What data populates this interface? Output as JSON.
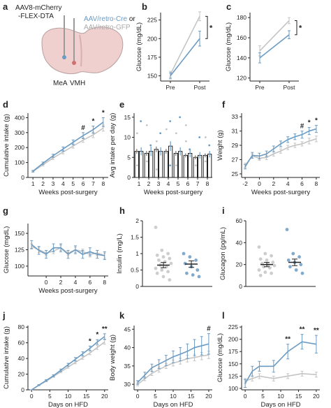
{
  "colors": {
    "cre": "#6b9bc3",
    "gfp": "#c4c4c4",
    "axis": "#222222",
    "text": "#222222"
  },
  "panel_a": {
    "letter": "a",
    "virus_line1": "AAV8-mCherry",
    "virus_line2": "-FLEX-DTA",
    "retro_cre": "AAV/retro-Cre",
    "retro_or": " or",
    "retro_gfp": "AAV/retro-GFP",
    "region_left": "MeA",
    "region_right": "VMH"
  },
  "chart_data": [
    {
      "id": "b",
      "letter": "b",
      "type": "line",
      "ylabel": "Glucose (mg/dL)",
      "xlabel": "",
      "categories": [
        "Pre",
        "Post"
      ],
      "yticks": [
        150,
        175,
        200,
        225
      ],
      "ylim": [
        143,
        235
      ],
      "series": [
        {
          "color": "gfp",
          "values": [
            152,
            230
          ],
          "err": [
            4,
            6
          ]
        },
        {
          "color": "cre",
          "values": [
            150,
            200
          ],
          "err": [
            4,
            10
          ]
        }
      ],
      "annotations": [
        "*"
      ]
    },
    {
      "id": "c",
      "letter": "c",
      "type": "line",
      "ylabel": "Glucose (mg/dL)",
      "xlabel": "",
      "categories": [
        "Pre",
        "Post"
      ],
      "yticks": [
        120,
        140,
        160,
        180
      ],
      "ylim": [
        117,
        185
      ],
      "series": [
        {
          "color": "gfp",
          "values": [
            147,
            177
          ],
          "err": [
            5,
            3
          ]
        },
        {
          "color": "cre",
          "values": [
            140,
            163
          ],
          "err": [
            5,
            4
          ]
        }
      ],
      "annotations": [
        "*"
      ]
    },
    {
      "id": "d",
      "letter": "d",
      "type": "line",
      "ylabel": "Cumulative intake (g)",
      "xlabel": "Weeks post-surgery",
      "x": [
        1,
        2,
        3,
        4,
        5,
        6,
        7,
        8
      ],
      "yticks": [
        0,
        100,
        200,
        300,
        400
      ],
      "ylim": [
        0,
        430
      ],
      "xlim": [
        0.5,
        8.5
      ],
      "series": [
        {
          "color": "gfp",
          "values": [
            40,
            85,
            130,
            170,
            210,
            250,
            285,
            330
          ],
          "err": [
            5,
            8,
            10,
            12,
            14,
            15,
            18,
            20
          ]
        },
        {
          "color": "cre",
          "values": [
            42,
            95,
            145,
            190,
            235,
            280,
            320,
            370
          ],
          "err": [
            5,
            8,
            10,
            14,
            16,
            20,
            24,
            30
          ]
        }
      ],
      "annotations": [
        "#",
        "*",
        "*"
      ]
    },
    {
      "id": "e",
      "letter": "e",
      "type": "bar",
      "ylabel": "Avg intake per day (g)",
      "xlabel": "Weeks post-surgery",
      "categories": [
        "1",
        "2",
        "3",
        "4",
        "5",
        "6",
        "7",
        "8"
      ],
      "yticks": [
        0,
        5,
        10,
        15
      ],
      "ylim": [
        0,
        16
      ],
      "series": [
        {
          "color": "gfp",
          "values": [
            6.5,
            6,
            7,
            6.5,
            6,
            5.5,
            5,
            5.5
          ],
          "err": [
            0.6,
            0.6,
            0.7,
            0.6,
            0.6,
            0.5,
            0.5,
            0.5
          ]
        },
        {
          "color": "cre",
          "values": [
            6.5,
            6.5,
            6.5,
            7.8,
            6.5,
            6,
            5.5,
            5.8
          ],
          "err": [
            1,
            1.2,
            1,
            1.2,
            1,
            1,
            0.8,
            0.8
          ]
        }
      ],
      "points_gfp": [
        [
          1,
          11
        ],
        [
          1,
          3
        ],
        [
          2,
          4
        ],
        [
          2,
          13
        ],
        [
          3,
          9
        ],
        [
          3,
          2
        ],
        [
          4,
          12
        ],
        [
          5,
          11
        ],
        [
          5,
          3
        ],
        [
          6,
          13
        ],
        [
          6,
          9
        ],
        [
          7,
          3
        ],
        [
          8,
          4
        ],
        [
          8,
          10
        ]
      ],
      "points_cre": [
        [
          1,
          14
        ],
        [
          2,
          8
        ],
        [
          3,
          11
        ],
        [
          4,
          14
        ],
        [
          4,
          3
        ],
        [
          5,
          15
        ],
        [
          6,
          7
        ],
        [
          7,
          10
        ],
        [
          8,
          8
        ]
      ]
    },
    {
      "id": "f",
      "letter": "f",
      "type": "line",
      "ylabel": "Weight (g)",
      "xlabel": "Weeks post-surgery",
      "x": [
        -2,
        -1,
        0,
        1,
        2,
        3,
        4,
        5,
        6,
        7,
        8
      ],
      "xticks": [
        -2,
        0,
        2,
        4,
        6,
        8
      ],
      "yticks": [
        25,
        27,
        29,
        31,
        33
      ],
      "ylim": [
        24.5,
        33.5
      ],
      "xlim": [
        -2.5,
        8.5
      ],
      "series": [
        {
          "color": "gfp",
          "values": [
            26.2,
            27.5,
            27.2,
            27.3,
            27.8,
            28.2,
            28.7,
            29,
            29.2,
            29.6,
            29.9
          ],
          "err": [
            0.3,
            0.3,
            0.3,
            0.3,
            0.3,
            0.3,
            0.3,
            0.3,
            0.3,
            0.4,
            0.4
          ]
        },
        {
          "color": "cre",
          "values": [
            26,
            27.6,
            27.5,
            27.8,
            28.5,
            29.2,
            29.8,
            30.2,
            30.5,
            31,
            31.3
          ],
          "err": [
            0.3,
            0.4,
            0.4,
            0.4,
            0.4,
            0.4,
            0.4,
            0.4,
            0.5,
            0.5,
            0.5
          ]
        }
      ],
      "annotations": [
        "#",
        "*",
        "*"
      ]
    },
    {
      "id": "g",
      "letter": "g",
      "type": "line",
      "ylabel": "Glucose (mgdL)",
      "xlabel": "Weeks post-surgery",
      "x": [
        -2,
        -1,
        0,
        1,
        2,
        3,
        4,
        5,
        6,
        7,
        8
      ],
      "xticks": [
        0,
        2,
        4,
        6,
        8
      ],
      "yticks": [
        100,
        125,
        150
      ],
      "ylim": [
        85,
        165
      ],
      "xlim": [
        -2.5,
        8.5
      ],
      "series": [
        {
          "color": "gfp",
          "values": [
            130,
            125,
            120,
            123,
            128,
            120,
            125,
            122,
            118,
            120,
            116
          ],
          "err": [
            4,
            4,
            4,
            4,
            4,
            4,
            4,
            4,
            4,
            4,
            4
          ]
        },
        {
          "color": "cre",
          "values": [
            133,
            124,
            118,
            128,
            128,
            118,
            125,
            118,
            122,
            118,
            116
          ],
          "err": [
            6,
            6,
            6,
            6,
            6,
            6,
            6,
            6,
            6,
            6,
            6
          ]
        }
      ]
    },
    {
      "id": "h",
      "letter": "h",
      "type": "scatter",
      "ylabel": "Insulin (mg/L)",
      "xlabel": "",
      "yticks": [
        0,
        0.5,
        1.0,
        1.5,
        2.0
      ],
      "ylim": [
        0,
        2.0
      ],
      "groups": [
        {
          "color": "gfp",
          "mean": 0.65,
          "err": 0.08,
          "points": [
            1.8,
            1.1,
            1.0,
            0.95,
            0.9,
            0.85,
            0.8,
            0.75,
            0.7,
            0.65,
            0.6,
            0.55,
            0.5,
            0.45,
            0.4,
            0.3,
            0.2
          ]
        },
        {
          "color": "cre",
          "mean": 0.68,
          "err": 0.1,
          "points": [
            1.0,
            0.9,
            0.8,
            0.7,
            0.6,
            0.5,
            0.4,
            0.35,
            0.3
          ]
        }
      ]
    },
    {
      "id": "i",
      "letter": "i",
      "type": "scatter",
      "ylabel": "Glucagon (pg/mL)",
      "xlabel": "",
      "yticks": [
        0,
        20,
        40,
        60
      ],
      "ylim": [
        0,
        60
      ],
      "groups": [
        {
          "color": "gfp",
          "mean": 20,
          "err": 2,
          "points": [
            36,
            30,
            28,
            25,
            24,
            22,
            21,
            20,
            19,
            18,
            17,
            15,
            13,
            12,
            10
          ]
        },
        {
          "color": "cre",
          "mean": 22,
          "err": 3,
          "points": [
            52,
            30,
            27,
            24,
            22,
            20,
            18,
            15,
            12
          ]
        }
      ]
    },
    {
      "id": "j",
      "letter": "j",
      "type": "line",
      "ylabel": "Cumulative intake (g)",
      "xlabel": "Days on HFD",
      "x": [
        0,
        2,
        4,
        6,
        8,
        10,
        12,
        14,
        16,
        18,
        20
      ],
      "xticks": [
        0,
        5,
        10,
        15,
        20
      ],
      "yticks": [
        0,
        20,
        40,
        60,
        80
      ],
      "ylim": [
        0,
        82
      ],
      "xlim": [
        -1,
        21
      ],
      "series": [
        {
          "color": "gfp",
          "values": [
            0,
            6,
            11,
            17,
            23,
            29,
            35,
            41,
            47,
            54,
            61
          ],
          "err": [
            0,
            0.5,
            0.8,
            1,
            1.2,
            1.5,
            1.8,
            2,
            2.2,
            2.5,
            2.8
          ]
        },
        {
          "color": "cre",
          "values": [
            0,
            6,
            12,
            18,
            25,
            32,
            39,
            46,
            53,
            61,
            68
          ],
          "err": [
            0,
            0.6,
            1,
            1.2,
            1.5,
            1.8,
            2.2,
            2.5,
            2.8,
            3,
            3.5
          ]
        }
      ],
      "annotations": [
        "*",
        "*",
        "**"
      ]
    },
    {
      "id": "k",
      "letter": "k",
      "type": "line",
      "ylabel": "Body weight (g)",
      "xlabel": "Days on HFD",
      "x": [
        0,
        2,
        4,
        6,
        8,
        10,
        12,
        14,
        16,
        18,
        20
      ],
      "xticks": [
        0,
        5,
        10,
        15,
        20
      ],
      "yticks": [
        30,
        35,
        40,
        45
      ],
      "ylim": [
        28.5,
        46
      ],
      "xlim": [
        -1,
        21
      ],
      "series": [
        {
          "color": "gfp",
          "values": [
            30,
            31.5,
            33,
            34,
            35,
            35.8,
            36.3,
            37,
            37.3,
            37.7,
            38
          ],
          "err": [
            0.4,
            0.5,
            0.6,
            0.7,
            0.7,
            0.8,
            0.8,
            0.9,
            0.9,
            1,
            1
          ]
        },
        {
          "color": "cre",
          "values": [
            30.5,
            32.5,
            34.5,
            35.5,
            36.5,
            37.5,
            38.2,
            39,
            40,
            40.5,
            41
          ],
          "err": [
            0.5,
            0.8,
            1,
            1.2,
            1.4,
            1.6,
            1.8,
            2,
            2.2,
            2.5,
            2.8
          ]
        }
      ],
      "annotations": [
        "#"
      ]
    },
    {
      "id": "l",
      "letter": "l",
      "type": "line",
      "ylabel": "Glucose (mg/dL)",
      "xlabel": "Days on HFD",
      "x": [
        0,
        2,
        4,
        8,
        12,
        16,
        20
      ],
      "xticks": [
        0,
        5,
        10,
        15,
        20
      ],
      "yticks": [
        100,
        125,
        150,
        175,
        200,
        225
      ],
      "ylim": [
        97,
        228
      ],
      "xlim": [
        -1,
        21
      ],
      "series": [
        {
          "color": "gfp",
          "values": [
            115,
            120,
            125,
            120,
            125,
            130,
            128
          ],
          "err": [
            5,
            5,
            5,
            5,
            5,
            5,
            5
          ]
        },
        {
          "color": "cre",
          "values": [
            110,
            135,
            145,
            145,
            175,
            195,
            190
          ],
          "err": [
            8,
            10,
            10,
            12,
            15,
            15,
            18
          ]
        }
      ],
      "annotations": [
        "**",
        "**",
        "**"
      ]
    }
  ]
}
